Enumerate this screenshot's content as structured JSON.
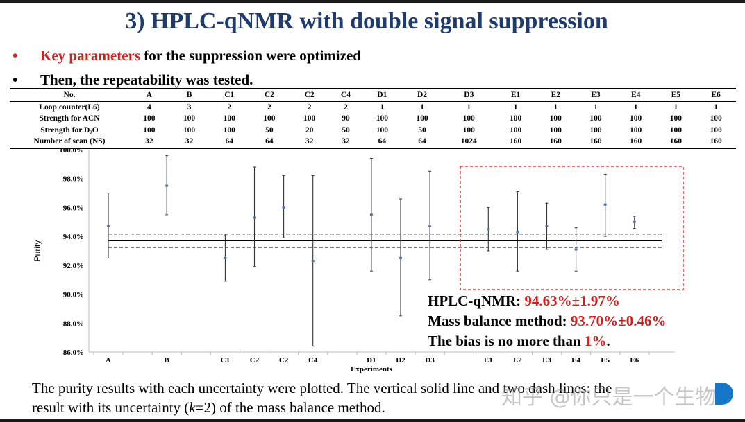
{
  "title": "3) HPLC-qNMR with double signal suppression",
  "bullets": [
    {
      "highlight": "Key parameters",
      "rest": " for the suppression were optimized"
    },
    {
      "highlight": "",
      "rest": "Then, the repeatability was tested."
    }
  ],
  "table": {
    "headers": [
      "No.",
      "A",
      "B",
      "C1",
      "C2",
      "C2",
      "C4",
      "D1",
      "D2",
      "D3",
      "E1",
      "E2",
      "E3",
      "E4",
      "E5",
      "E6"
    ],
    "rows": [
      [
        "Loop counter(L6)",
        "4",
        "3",
        "2",
        "2",
        "2",
        "2",
        "1",
        "1",
        "1",
        "1",
        "1",
        "1",
        "1",
        "1",
        "1"
      ],
      [
        "Strength for ACN",
        "100",
        "100",
        "100",
        "100",
        "100",
        "90",
        "100",
        "100",
        "100",
        "100",
        "100",
        "100",
        "100",
        "100",
        "100"
      ],
      [
        "Strength for D₂O",
        "100",
        "100",
        "100",
        "50",
        "20",
        "50",
        "100",
        "50",
        "100",
        "100",
        "100",
        "100",
        "100",
        "100",
        "100"
      ],
      [
        "Number of scan (NS)",
        "32",
        "32",
        "64",
        "64",
        "32",
        "32",
        "64",
        "64",
        "1024",
        "160",
        "160",
        "160",
        "160",
        "160",
        "160"
      ]
    ]
  },
  "chart_data": {
    "type": "scatter",
    "xlabel": "Experiments",
    "ylabel": "Purity",
    "ylim": [
      86.0,
      100.0
    ],
    "yticks": [
      "86.0%",
      "88.0%",
      "90.0%",
      "92.0%",
      "94.0%",
      "96.0%",
      "98.0%",
      "100.0%"
    ],
    "categories": [
      "A",
      "",
      "B",
      "",
      "C1",
      "C2",
      "C2",
      "C4",
      "",
      "D1",
      "D2",
      "D3",
      "",
      "E1",
      "E2",
      "E3",
      "E4",
      "E5",
      "E6"
    ],
    "points": [
      {
        "label": "A",
        "value": 94.7,
        "low": 92.5,
        "high": 97.0
      },
      {
        "label": "B",
        "value": 97.5,
        "low": 95.5,
        "high": 99.6
      },
      {
        "label": "C1",
        "value": 92.5,
        "low": 90.9,
        "high": 94.1
      },
      {
        "label": "C2",
        "value": 95.3,
        "low": 91.9,
        "high": 98.8
      },
      {
        "label": "C2",
        "value": 96.0,
        "low": 93.9,
        "high": 98.2
      },
      {
        "label": "C4",
        "value": 92.3,
        "low": 86.4,
        "high": 98.2
      },
      {
        "label": "D1",
        "value": 95.5,
        "low": 91.6,
        "high": 99.4
      },
      {
        "label": "D2",
        "value": 92.5,
        "low": 88.5,
        "high": 96.6
      },
      {
        "label": "D3",
        "value": 94.7,
        "low": 91.0,
        "high": 98.5
      },
      {
        "label": "E1",
        "value": 94.5,
        "low": 93.0,
        "high": 96.0
      },
      {
        "label": "E2",
        "value": 94.3,
        "low": 91.6,
        "high": 97.1
      },
      {
        "label": "E3",
        "value": 94.7,
        "low": 93.1,
        "high": 96.3
      },
      {
        "label": "E4",
        "value": 93.1,
        "low": 91.6,
        "high": 94.6
      },
      {
        "label": "E5",
        "value": 96.2,
        "low": 94.0,
        "high": 98.3
      },
      {
        "label": "E6",
        "value": 95.0,
        "low": 94.55,
        "high": 95.4
      }
    ],
    "reference": {
      "value": 93.7,
      "low": 93.24,
      "high": 94.16
    },
    "highlight_box": [
      "E1",
      "E6"
    ],
    "colors": {
      "marker": "#4a78b5",
      "errorbar": "#333333",
      "box": "#d41f1f",
      "text_red": "#d41f1f"
    }
  },
  "results": [
    {
      "label": "HPLC-qNMR: ",
      "value": "94.63%±1.97%",
      "tail": ""
    },
    {
      "label": "Mass balance method: ",
      "value": "93.70%±0.46%",
      "tail": ""
    },
    {
      "label": "The bias is no more than ",
      "value": "1%",
      "tail": "."
    }
  ],
  "caption": {
    "line1_pre": "The purity results with each uncertainty were plotted. The vertical solid line and two dash lines: the",
    "line2_a": "result with its uncertainty (",
    "line2_k": "k",
    "line2_b": "=2) of the mass balance method."
  },
  "watermark": "知乎 @你只是一个生物"
}
